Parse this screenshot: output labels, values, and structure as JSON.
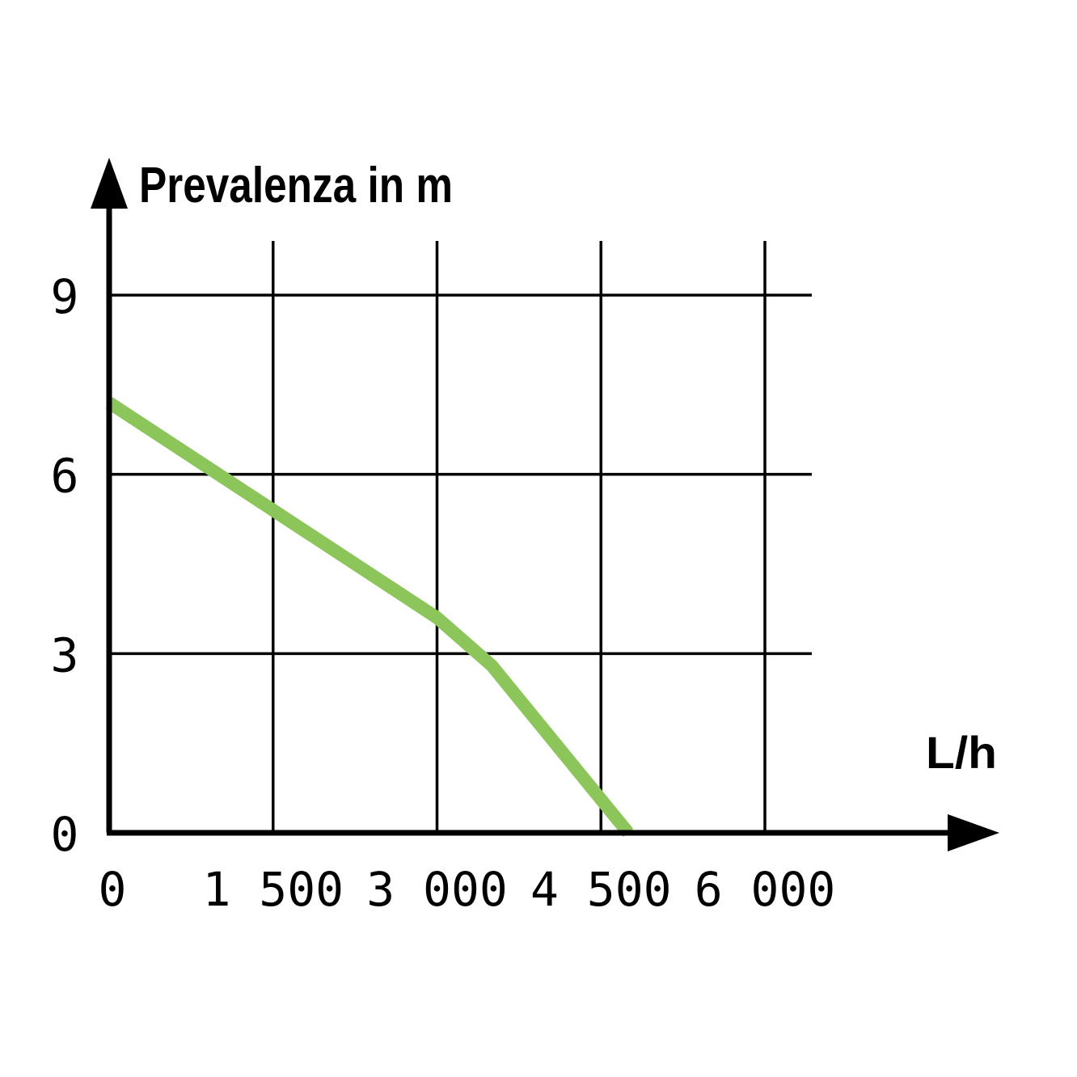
{
  "chart_data": {
    "type": "line",
    "title": "",
    "ylabel": "Prevalenza in m",
    "xlabel": "L/h",
    "xlim": [
      0,
      6000
    ],
    "ylim": [
      0,
      9
    ],
    "x_ticks": [
      0,
      1500,
      3000,
      4500,
      6000
    ],
    "x_tick_labels": [
      "0",
      "1 500",
      "3 000",
      "4 500",
      "6 000"
    ],
    "y_ticks": [
      0,
      3,
      6,
      9
    ],
    "y_tick_labels": [
      "0",
      "3",
      "6",
      "9"
    ],
    "grid": true,
    "legend": "none",
    "series": [
      {
        "color": "#8cc65a",
        "x": [
          0,
          1500,
          3000,
          3500,
          4750
        ],
        "y": [
          7.2,
          5.4,
          3.6,
          2.8,
          0
        ]
      }
    ]
  }
}
